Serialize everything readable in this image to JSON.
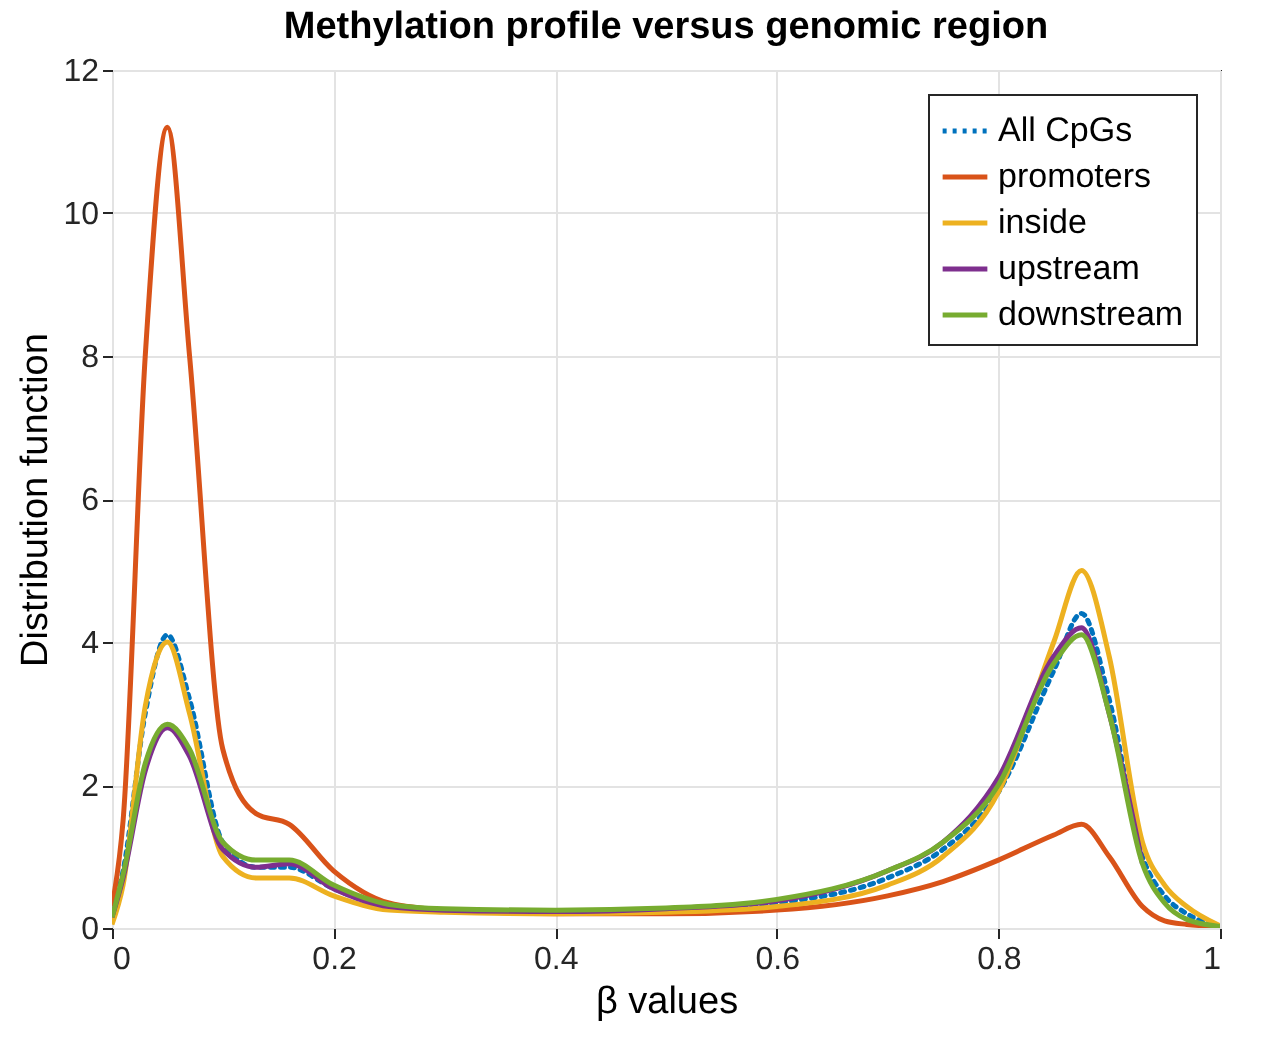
{
  "chart_data": {
    "type": "line",
    "title": "Methylation profile versus genomic region",
    "xlabel": "β values",
    "ylabel": "Distribution function",
    "x": [
      0,
      0.01,
      0.03,
      0.05,
      0.07,
      0.1,
      0.13,
      0.16,
      0.2,
      0.25,
      0.3,
      0.4,
      0.5,
      0.6,
      0.7,
      0.75,
      0.8,
      0.85,
      0.875,
      0.9,
      0.93,
      0.95,
      0.97,
      1
    ],
    "series": [
      {
        "name": "All CpGs",
        "color": "#0072bd",
        "line_style": "dotted",
        "values": [
          0.2,
          0.8,
          3,
          4.1,
          3.2,
          1.2,
          0.85,
          0.85,
          0.55,
          0.3,
          0.25,
          0.22,
          0.25,
          0.35,
          0.7,
          1.1,
          1.9,
          3.6,
          4.4,
          3.2,
          1.0,
          0.45,
          0.2,
          0.03
        ]
      },
      {
        "name": "promoters",
        "color": "#d95319",
        "line_style": "solid",
        "values": [
          0.3,
          1.5,
          8,
          11.2,
          8,
          2.5,
          1.6,
          1.45,
          0.8,
          0.35,
          0.25,
          0.2,
          0.2,
          0.25,
          0.45,
          0.65,
          0.95,
          1.3,
          1.45,
          1.0,
          0.3,
          0.1,
          0.05,
          0.02
        ]
      },
      {
        "name": "inside",
        "color": "#edb120",
        "line_style": "solid",
        "values": [
          0.05,
          0.6,
          3.1,
          4.0,
          3.0,
          1.0,
          0.7,
          0.7,
          0.45,
          0.25,
          0.22,
          0.2,
          0.22,
          0.3,
          0.6,
          1.0,
          1.9,
          4.0,
          5.0,
          3.8,
          1.2,
          0.6,
          0.3,
          0.03
        ]
      },
      {
        "name": "upstream",
        "color": "#7e2f8e",
        "line_style": "solid",
        "values": [
          0.15,
          0.7,
          2.2,
          2.8,
          2.4,
          1.1,
          0.85,
          0.9,
          0.55,
          0.3,
          0.25,
          0.23,
          0.27,
          0.38,
          0.8,
          1.2,
          2.1,
          3.8,
          4.2,
          3.0,
          0.9,
          null,
          null,
          null
        ]
      },
      {
        "name": "downstream",
        "color": "#77ac30",
        "line_style": "solid",
        "values": [
          0.15,
          0.75,
          2.3,
          2.85,
          2.5,
          1.2,
          0.95,
          0.95,
          0.6,
          0.33,
          0.27,
          0.25,
          0.28,
          0.4,
          0.8,
          1.2,
          2.0,
          3.7,
          4.1,
          3.0,
          0.9,
          0.35,
          0.12,
          0.02
        ]
      }
    ],
    "xlim": [
      0,
      1
    ],
    "xticks": [
      0,
      0.2,
      0.4,
      0.6,
      0.8,
      1
    ],
    "ylim": [
      0,
      12
    ],
    "yticks": [
      0,
      2,
      4,
      6,
      8,
      10,
      12
    ],
    "grid": true,
    "legend": "top right"
  }
}
